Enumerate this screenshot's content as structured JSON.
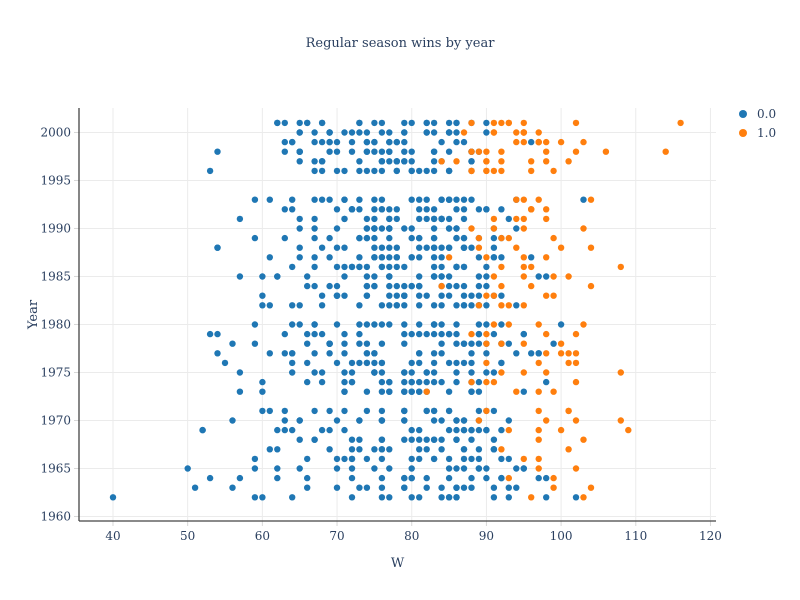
{
  "title": "Regular season wins by year",
  "legend": {
    "items": [
      {
        "label": "0.0",
        "color": "#1f77b4"
      },
      {
        "label": "1.0",
        "color": "#ff7f0e"
      }
    ]
  },
  "colors": {
    "blue": "#1f77b4",
    "orange": "#ff7f0e",
    "grid": "#ebebeb",
    "axis": "#444444",
    "tick_text": "#2a3f5f"
  },
  "chart_data": {
    "type": "scatter",
    "title": "Regular season wins by year",
    "xlabel": "W",
    "ylabel": "Year",
    "xlim": [
      35.45,
      120.74
    ],
    "ylim": [
      1959.53,
      2002.55
    ],
    "x_ticks": [
      40,
      50,
      60,
      70,
      80,
      90,
      100,
      110,
      120
    ],
    "y_ticks": [
      1960,
      1965,
      1970,
      1975,
      1980,
      1985,
      1990,
      1995,
      2000
    ],
    "grid": true,
    "legend_position": "top-right-outside",
    "marker_radius": 3.2,
    "series": [
      {
        "name": "0.0",
        "color": "#1f77b4",
        "points_by_year": {
          "1962": [
            102,
            98,
            93,
            91,
            86,
            86,
            85,
            85,
            84,
            81,
            80,
            77,
            76,
            72,
            64,
            60,
            59,
            40
          ],
          "1963": [
            94,
            93,
            91,
            88,
            87,
            86,
            86,
            84,
            82,
            79,
            79,
            76,
            74,
            73,
            70,
            66,
            56,
            51
          ],
          "1964": [
            98,
            97,
            92,
            92,
            90,
            88,
            85,
            82,
            80,
            80,
            79,
            79,
            76,
            72,
            66,
            62,
            57,
            53
          ],
          "1965": [
            95,
            95,
            94,
            90,
            89,
            89,
            87,
            86,
            85,
            80,
            77,
            75,
            72,
            70,
            65,
            62,
            59,
            50
          ],
          "1966": [
            93,
            92,
            89,
            88,
            87,
            85,
            83,
            83,
            81,
            80,
            76,
            74,
            72,
            72,
            71,
            70,
            66,
            59
          ],
          "1967": [
            91,
            91,
            91,
            89,
            87,
            87,
            84,
            82,
            81,
            77,
            76,
            76,
            75,
            73,
            72,
            69,
            62,
            61
          ],
          "1968": [
            91,
            88,
            86,
            86,
            84,
            83,
            83,
            82,
            81,
            80,
            79,
            76,
            76,
            73,
            72,
            67,
            67,
            65
          ],
          "1969": [
            92,
            90,
            90,
            89,
            88,
            88,
            87,
            87,
            86,
            85,
            81,
            80,
            71,
            69,
            68,
            64,
            63,
            62,
            52,
            52
          ],
          "1970": [
            93,
            89,
            87,
            87,
            86,
            86,
            84,
            83,
            79,
            79,
            76,
            76,
            76,
            73,
            73,
            70,
            65,
            65,
            63,
            56
          ],
          "1971": [
            91,
            90,
            89,
            85,
            85,
            83,
            83,
            82,
            82,
            79,
            79,
            79,
            76,
            74,
            71,
            69,
            67,
            63,
            61,
            60
          ],
          "1973": [
            95,
            89,
            88,
            88,
            85,
            82,
            81,
            81,
            80,
            80,
            79,
            79,
            77,
            77,
            76,
            74,
            71,
            71,
            60,
            57
          ],
          "1974": [
            98,
            89,
            88,
            86,
            84,
            83,
            82,
            81,
            80,
            80,
            79,
            77,
            77,
            76,
            72,
            72,
            71,
            68,
            66,
            60
          ],
          "1975": [
            91,
            90,
            88,
            86,
            83,
            82,
            82,
            80,
            79,
            79,
            76,
            75,
            75,
            75,
            72,
            71,
            68,
            67,
            64,
            57
          ],
          "1976": [
            92,
            92,
            88,
            87,
            86,
            85,
            83,
            81,
            80,
            76,
            76,
            75,
            74,
            74,
            73,
            72,
            70,
            66,
            64,
            55
          ],
          "1977": [
            97,
            97,
            96,
            94,
            90,
            88,
            84,
            83,
            81,
            81,
            75,
            75,
            74,
            74,
            71,
            69,
            67,
            64,
            64,
            63,
            61,
            54
          ],
          "1978": [
            99,
            93,
            92,
            90,
            89,
            88,
            87,
            87,
            86,
            84,
            79,
            76,
            74,
            73,
            71,
            69,
            69,
            69,
            69,
            66,
            59,
            56
          ],
          "1979": [
            95,
            95,
            91,
            89,
            89,
            86,
            85,
            85,
            84,
            83,
            82,
            81,
            80,
            79,
            73,
            71,
            68,
            67,
            66,
            63,
            54,
            53
          ],
          "1980": [
            100,
            92,
            90,
            89,
            86,
            84,
            83,
            83,
            83,
            81,
            79,
            77,
            76,
            75,
            74,
            73,
            70,
            67,
            67,
            65,
            64,
            59
          ],
          "1982": [
            94,
            90,
            89,
            89,
            88,
            87,
            87,
            86,
            84,
            83,
            81,
            79,
            78,
            78,
            77,
            76,
            73,
            68,
            65,
            64,
            61,
            60
          ],
          "1983": [
            92,
            91,
            89,
            88,
            87,
            85,
            84,
            82,
            81,
            79,
            79,
            79,
            78,
            77,
            74,
            74,
            71,
            70,
            70,
            70,
            68,
            60
          ],
          "1984": [
            90,
            89,
            87,
            86,
            85,
            84,
            81,
            81,
            81,
            80,
            80,
            79,
            78,
            77,
            75,
            75,
            74,
            74,
            70,
            69,
            67,
            66
          ],
          "1985": [
            98,
            97,
            90,
            89,
            85,
            84,
            84,
            83,
            83,
            83,
            81,
            77,
            77,
            77,
            75,
            74,
            71,
            66,
            62,
            62,
            60,
            57
          ],
          "1986": [
            90,
            87,
            87,
            86,
            86,
            86,
            84,
            83,
            79,
            78,
            77,
            76,
            76,
            74,
            73,
            73,
            72,
            72,
            71,
            70,
            67,
            64
          ],
          "1987": [
            96,
            92,
            91,
            91,
            89,
            84,
            83,
            81,
            80,
            80,
            78,
            78,
            77,
            76,
            76,
            75,
            75,
            73,
            69,
            67,
            65,
            61
          ],
          "1988": [
            91,
            88,
            87,
            87,
            87,
            85,
            85,
            84,
            83,
            83,
            82,
            81,
            78,
            77,
            76,
            75,
            71,
            70,
            68,
            65,
            54,
            54
          ],
          "1989": [
            92,
            91,
            89,
            87,
            87,
            86,
            86,
            83,
            83,
            81,
            81,
            80,
            77,
            75,
            74,
            74,
            73,
            73,
            69,
            67,
            63,
            59
          ],
          "1990": [
            94,
            91,
            86,
            86,
            85,
            85,
            83,
            80,
            79,
            77,
            77,
            77,
            77,
            76,
            75,
            75,
            75,
            74,
            74,
            70,
            67,
            65
          ],
          "1991": [
            93,
            87,
            85,
            84,
            84,
            84,
            84,
            84,
            83,
            83,
            82,
            81,
            78,
            77,
            77,
            75,
            74,
            71,
            71,
            67,
            65,
            57
          ],
          "1992": [
            92,
            90,
            90,
            89,
            87,
            86,
            83,
            82,
            81,
            78,
            77,
            76,
            76,
            75,
            73,
            72,
            72,
            72,
            72,
            70,
            64,
            63
          ],
          "1993": [
            103,
            94,
            88,
            87,
            86,
            85,
            85,
            85,
            84,
            84,
            82,
            81,
            80,
            76,
            75,
            73,
            71,
            71,
            69,
            68,
            67,
            64,
            61,
            59
          ],
          "1996": [
            88,
            85,
            85,
            85,
            83,
            82,
            81,
            80,
            80,
            78,
            78,
            76,
            75,
            74,
            73,
            71,
            70,
            68,
            67,
            53
          ],
          "1997": [
            88,
            88,
            84,
            83,
            80,
            79,
            79,
            78,
            78,
            78,
            77,
            76,
            76,
            76,
            73,
            68,
            68,
            68,
            67,
            65
          ],
          "1998": [
            89,
            88,
            88,
            85,
            83,
            83,
            80,
            79,
            77,
            77,
            76,
            75,
            74,
            74,
            72,
            70,
            69,
            65,
            65,
            65,
            63,
            54
          ],
          "1999": [
            96,
            87,
            86,
            84,
            79,
            78,
            78,
            77,
            77,
            75,
            75,
            74,
            74,
            72,
            70,
            69,
            69,
            68,
            67,
            64,
            64,
            63
          ],
          "2000": [
            90,
            86,
            85,
            85,
            85,
            83,
            82,
            82,
            79,
            79,
            77,
            76,
            74,
            73,
            72,
            71,
            69,
            69,
            69,
            67,
            65,
            65
          ],
          "2001": [
            90,
            88,
            86,
            86,
            85,
            83,
            82,
            82,
            80,
            79,
            76,
            75,
            73,
            73,
            68,
            68,
            66,
            66,
            65,
            63,
            62,
            62
          ]
        }
      },
      {
        "name": "1.0",
        "color": "#ff7f0e",
        "points_by_year": {
          "1962": [
            103,
            96
          ],
          "1963": [
            104,
            99
          ],
          "1964": [
            99,
            93
          ],
          "1965": [
            102,
            97
          ],
          "1966": [
            97,
            95
          ],
          "1967": [
            101,
            92
          ],
          "1968": [
            103,
            97
          ],
          "1969": [
            109,
            100,
            97,
            93
          ],
          "1970": [
            108,
            102,
            98,
            89
          ],
          "1971": [
            101,
            101,
            97,
            90
          ],
          "1973": [
            99,
            97,
            94,
            82
          ],
          "1974": [
            102,
            91,
            90,
            88
          ],
          "1975": [
            108,
            98,
            95,
            92
          ],
          "1976": [
            102,
            101,
            97,
            90
          ],
          "1977": [
            102,
            101,
            100,
            98
          ],
          "1978": [
            100,
            95,
            92,
            90
          ],
          "1979": [
            102,
            98,
            90,
            88
          ],
          "1980": [
            103,
            97,
            93,
            91
          ],
          "1982": [
            95,
            93,
            92,
            89
          ],
          "1983": [
            99,
            98,
            91,
            90
          ],
          "1984": [
            104,
            96,
            92,
            84
          ],
          "1985": [
            101,
            99,
            95,
            91
          ],
          "1986": [
            108,
            96,
            95,
            92
          ],
          "1987": [
            98,
            95,
            90,
            85
          ],
          "1988": [
            104,
            100,
            94,
            89
          ],
          "1989": [
            99,
            93,
            92,
            89
          ],
          "1990": [
            103,
            95,
            91,
            88
          ],
          "1991": [
            98,
            95,
            94,
            91
          ],
          "1992": [
            98,
            96,
            96,
            96
          ],
          "1993": [
            104,
            97,
            95,
            94
          ],
          "1996": [
            99,
            96,
            92,
            91,
            90,
            90,
            88,
            88
          ],
          "1997": [
            101,
            98,
            96,
            92,
            90,
            90,
            86,
            84
          ],
          "1998": [
            114,
            106,
            102,
            98,
            92,
            90,
            89,
            88
          ],
          "1999": [
            103,
            100,
            98,
            97,
            97,
            97,
            95,
            94
          ],
          "2000": [
            97,
            95,
            95,
            95,
            94,
            91,
            91,
            87
          ],
          "2001": [
            116,
            102,
            95,
            93,
            93,
            92,
            91,
            88
          ]
        }
      }
    ]
  }
}
